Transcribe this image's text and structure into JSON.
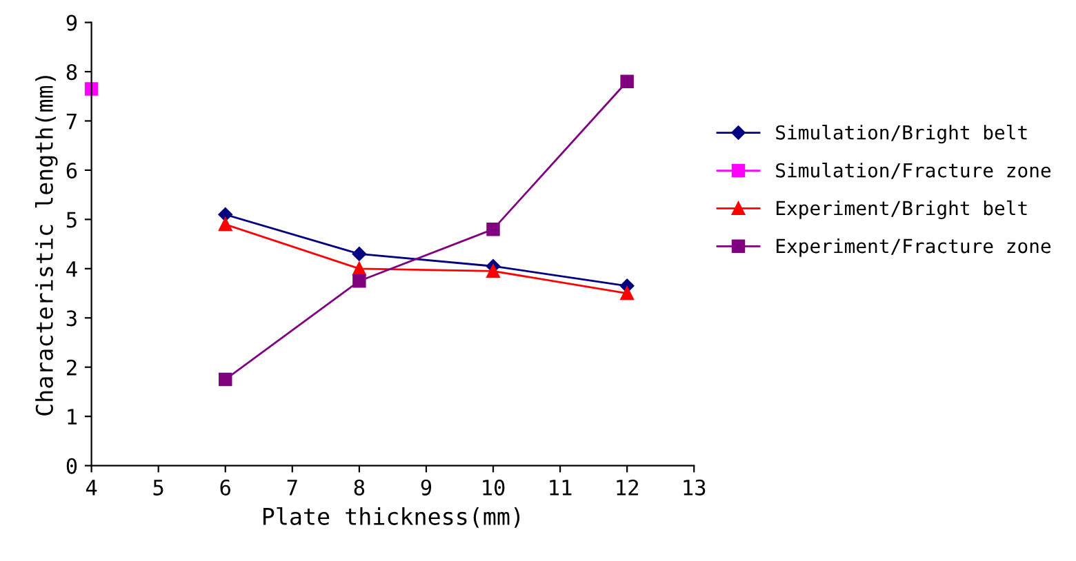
{
  "chart_data": {
    "type": "line",
    "xlabel": "Plate thickness(mm)",
    "ylabel": "Characteristic length(mm)",
    "xlim": [
      4,
      13
    ],
    "xticks": [
      4,
      5,
      6,
      7,
      8,
      9,
      10,
      11,
      12,
      13
    ],
    "ylim": [
      0,
      9
    ],
    "yticks": [
      0,
      1,
      2,
      3,
      4,
      5,
      6,
      7,
      8,
      9
    ],
    "grid": false,
    "legend": "right",
    "series": [
      {
        "name": "Simulation/Bright belt",
        "color": "#000080",
        "marker": "diamond",
        "x": [
          6,
          8,
          10,
          12
        ],
        "values": [
          5.1,
          4.3,
          4.05,
          3.65
        ]
      },
      {
        "name": "Simulation/Fracture zone",
        "color": "#ff00ff",
        "marker": "square",
        "x": [
          4
        ],
        "values": [
          7.65
        ]
      },
      {
        "name": "Experiment/Bright belt",
        "color": "#ff0000",
        "marker": "triangle",
        "x": [
          6,
          8,
          10,
          12
        ],
        "values": [
          4.9,
          4.0,
          3.95,
          3.5
        ]
      },
      {
        "name": "Experiment/Fracture zone",
        "color": "#800080",
        "marker": "square",
        "x": [
          6,
          8,
          10,
          12
        ],
        "values": [
          1.75,
          3.75,
          4.8,
          7.8
        ]
      }
    ]
  }
}
